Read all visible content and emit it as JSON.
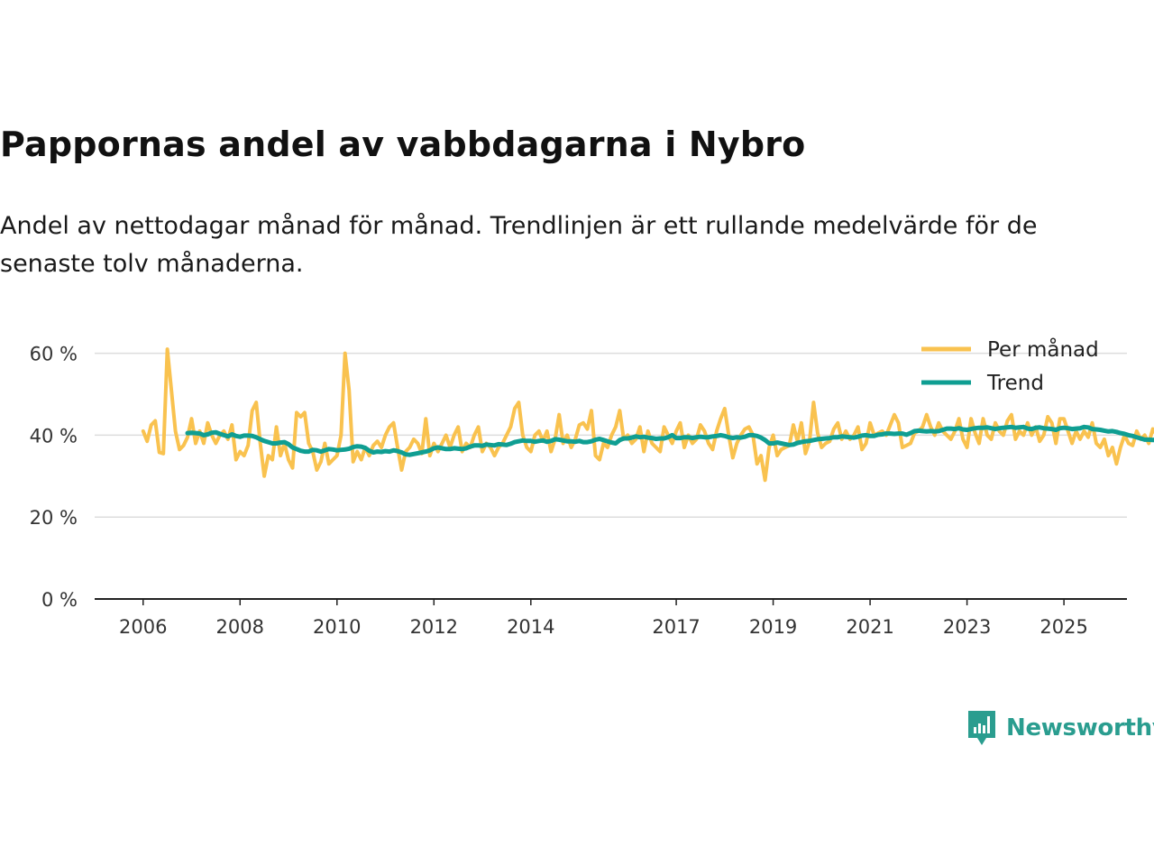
{
  "title": "Pappornas andel av vabbdagarna i Nybro",
  "subtitle": "Andel av nettodagar månad för månad. Trendlinjen är ett rullande medelvärde för de senaste tolv månaderna.",
  "brand": {
    "name": "Newsworthy",
    "icon": "chat-bar-chart-icon",
    "color": "#2a9d8f"
  },
  "colors": {
    "monthly": "#f9c24f",
    "trend": "#0f9e92",
    "axis": "#222222",
    "grid": "#dddddd"
  },
  "chart_data": {
    "type": "line",
    "title": "Pappornas andel av vabbdagarna i Nybro",
    "xlabel": "",
    "ylabel": "",
    "ylim": [
      0,
      65
    ],
    "y_ticks": [
      0,
      20,
      40,
      60
    ],
    "y_tick_labels": [
      "0 %",
      "20 %",
      "40 %",
      "60 %"
    ],
    "x_ticks": [
      2006,
      2008,
      2010,
      2012,
      2014,
      2017,
      2019,
      2021,
      2023,
      2025
    ],
    "x_tick_labels": [
      "2006",
      "2008",
      "2010",
      "2012",
      "2014",
      "2017",
      "2019",
      "2021",
      "2023",
      "2025"
    ],
    "xlim": [
      2005.0,
      2026.3
    ],
    "grid": true,
    "legend_position": "top-right",
    "series": [
      {
        "name": "Per månad",
        "x_start": 2006.0,
        "step": 0.0833333,
        "values": [
          41,
          38.5,
          42.5,
          43.5,
          35.8,
          35.5,
          61,
          51,
          41,
          36.5,
          37.5,
          39.5,
          44,
          38,
          41,
          38,
          43,
          40,
          38,
          40,
          41,
          39,
          42.5,
          34,
          36,
          35,
          37.5,
          46,
          48,
          38,
          30,
          35,
          34,
          42,
          35,
          38,
          34,
          32,
          45.5,
          44.5,
          45.5,
          38,
          36,
          31.5,
          33.5,
          38,
          33,
          34,
          35,
          40,
          60,
          51,
          33.5,
          36,
          34,
          37,
          35,
          37.5,
          38.5,
          37,
          40,
          42,
          43,
          37,
          31.5,
          36,
          37,
          39,
          38,
          35.5,
          44,
          35,
          38,
          36,
          38,
          40,
          37,
          40,
          42,
          36,
          38,
          37,
          40,
          42,
          36,
          38,
          37,
          35,
          37,
          38,
          40,
          42,
          46.5,
          48,
          40,
          37,
          36,
          40,
          41,
          38.5,
          41,
          36,
          39,
          45,
          38,
          40,
          37,
          39,
          42.5,
          43,
          41.5,
          46,
          35,
          34,
          38,
          37,
          40,
          42,
          46,
          39,
          40,
          38,
          39,
          42,
          36,
          41,
          38,
          37,
          36,
          42,
          40,
          38,
          41,
          43,
          37,
          40,
          38,
          39,
          42.5,
          41,
          38,
          36.5,
          41,
          44,
          46.5,
          40,
          34.5,
          38,
          40,
          41.5,
          42,
          40,
          33,
          35,
          29,
          37,
          40,
          35,
          36.5,
          37,
          37.5,
          42.5,
          38.5,
          43,
          35.5,
          38.5,
          48,
          40.5,
          37,
          38,
          38.5,
          41.5,
          43,
          39,
          41,
          39,
          40,
          42,
          36.5,
          38,
          43,
          40,
          40.5,
          41,
          40,
          42.5,
          45,
          43,
          37,
          37.5,
          38,
          40.5,
          41,
          42,
          45,
          42,
          40,
          43,
          41,
          40,
          39,
          41,
          44,
          39,
          37,
          44,
          40.5,
          38,
          44,
          40,
          39,
          43,
          41,
          40,
          43.5,
          45,
          39,
          41,
          40,
          43,
          40,
          42,
          38.5,
          40,
          44.5,
          43,
          38,
          44,
          44,
          41,
          38,
          41,
          39,
          41,
          39.5,
          43,
          38,
          37,
          39,
          35,
          37,
          33,
          37,
          40,
          38,
          37.5,
          41,
          39,
          40,
          38,
          41.5,
          40,
          38.5
        ],
        "color": "#f9c24f"
      },
      {
        "name": "Trend",
        "x_start": 2006.9167,
        "step": 0.0833333,
        "values": [
          40.5,
          40.6,
          40.5,
          40.4,
          40.0,
          40.2,
          40.6,
          40.7,
          40.3,
          40.0,
          39.7,
          40.2,
          39.8,
          39.6,
          39.9,
          39.9,
          39.8,
          39.5,
          39.0,
          38.6,
          38.3,
          38.0,
          38.0,
          38.2,
          38.3,
          37.8,
          37.0,
          36.6,
          36.2,
          36.0,
          36.0,
          36.4,
          36.3,
          36.0,
          36.3,
          36.6,
          36.5,
          36.3,
          36.4,
          36.5,
          36.7,
          37.1,
          37.3,
          37.2,
          36.9,
          36.2,
          35.8,
          36.0,
          35.9,
          36.1,
          36.0,
          36.3,
          36.1,
          35.8,
          35.3,
          35.2,
          35.4,
          35.6,
          35.8,
          36.0,
          36.3,
          36.8,
          37.0,
          36.8,
          36.6,
          36.6,
          36.8,
          36.7,
          36.6,
          36.8,
          37.2,
          37.5,
          37.5,
          37.4,
          37.7,
          37.6,
          37.5,
          37.8,
          37.7,
          37.6,
          37.9,
          38.3,
          38.5,
          38.7,
          38.6,
          38.6,
          38.4,
          38.6,
          38.7,
          38.4,
          38.6,
          39.0,
          38.9,
          38.7,
          38.5,
          38.5,
          38.4,
          38.6,
          38.3,
          38.3,
          38.5,
          38.9,
          39.1,
          38.8,
          38.5,
          38.2,
          38.0,
          38.8,
          39.2,
          39.2,
          39.4,
          39.7,
          39.5,
          39.6,
          39.4,
          39.3,
          39.1,
          39.2,
          39.2,
          39.5,
          40.0,
          39.3,
          39.3,
          39.5,
          39.5,
          39.3,
          39.5,
          39.6,
          39.5,
          39.5,
          39.7,
          39.8,
          40.0,
          39.8,
          39.5,
          39.3,
          39.5,
          39.4,
          39.6,
          40.0,
          40.0,
          39.8,
          39.4,
          38.8,
          38.0,
          38.0,
          38.2,
          38.0,
          37.8,
          37.6,
          37.7,
          38.1,
          38.3,
          38.5,
          38.6,
          38.8,
          39.0,
          39.1,
          39.2,
          39.3,
          39.5,
          39.5,
          39.7,
          39.6,
          39.5,
          39.4,
          39.6,
          39.9,
          40.0,
          39.8,
          39.8,
          40.1,
          40.2,
          40.4,
          40.4,
          40.3,
          40.4,
          40.4,
          40.1,
          40.5,
          41.0,
          41.1,
          41.0,
          40.9,
          41.0,
          40.9,
          41.0,
          41.3,
          41.6,
          41.6,
          41.5,
          41.7,
          41.4,
          41.3,
          41.5,
          41.7,
          41.8,
          41.8,
          41.9,
          41.7,
          41.5,
          41.7,
          41.8,
          41.9,
          42.0,
          41.8,
          41.9,
          42.0,
          41.6,
          41.5,
          41.8,
          41.9,
          41.7,
          41.6,
          41.5,
          41.3,
          41.7,
          41.8,
          41.7,
          41.5,
          41.6,
          41.7,
          42.0,
          41.9,
          41.5,
          41.4,
          41.3,
          41.1,
          40.9,
          41.0,
          40.8,
          40.5,
          40.3,
          40.0,
          39.8,
          39.5,
          39.2,
          38.9,
          38.9,
          38.8,
          38.9,
          38.9,
          38.9,
          38.9,
          38.9,
          38.9
        ],
        "color": "#0f9e92"
      }
    ]
  }
}
